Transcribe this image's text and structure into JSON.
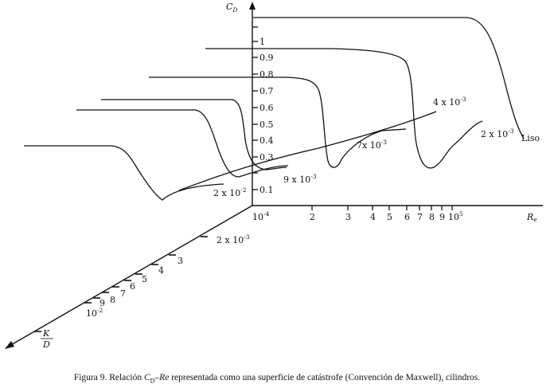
{
  "axes": {
    "y_label": "C",
    "y_label_sub": "D",
    "x_label": "R",
    "x_label_sub": "e",
    "x_origin": {
      "base": "10",
      "exp": "-4"
    },
    "z_label_num": "K",
    "z_label_den": "D"
  },
  "y_ticks": [
    "1",
    "0.9",
    "0.8",
    "0.7",
    "0.6",
    "0.5",
    "0.4",
    "0.3",
    "0.1"
  ],
  "x_ticks": [
    "2",
    "3",
    "4",
    "5",
    "6",
    "7",
    "8",
    "9"
  ],
  "x_tick_last": {
    "base": "10",
    "exp": "5"
  },
  "z_ticks": {
    "first": {
      "base": "2 x 10",
      "exp": "-3"
    },
    "digits": [
      "3",
      "4",
      "5",
      "6",
      "7",
      "8",
      "9"
    ],
    "last": {
      "base": "10",
      "exp": "-2"
    }
  },
  "curve_labels": {
    "liso": "Liso",
    "c1": {
      "base": "2 x 10",
      "exp": "-3"
    },
    "c2": {
      "base": "4 x 10",
      "exp": "-3"
    },
    "c3": {
      "base": "7x 10",
      "exp": "-3"
    },
    "c4": {
      "base": "9 x 10",
      "exp": "-3"
    },
    "c5": {
      "base": "2 x 10",
      "exp": "-2"
    }
  },
  "caption": {
    "prefix": "Figura 9. Relación ",
    "cd": "C",
    "cd_sub": "D",
    "dash": "–",
    "re": "Re",
    "suffix": " representada como una superficie de catástrofe (Convención de Maxwell), cilindros."
  }
}
